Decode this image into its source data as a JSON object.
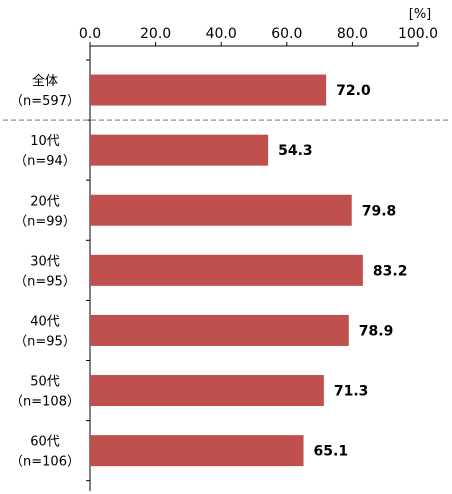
{
  "chart_data": {
    "type": "bar",
    "orientation": "horizontal",
    "unit": "[%]",
    "xlim": [
      0,
      100
    ],
    "ticks": [
      "0.0",
      "20.0",
      "40.0",
      "60.0",
      "80.0",
      "100.0"
    ],
    "grid": false,
    "categories": [
      {
        "line1": "全体",
        "line2": "（n=597）"
      },
      {
        "line1": "10代",
        "line2": "（n=94）"
      },
      {
        "line1": "20代",
        "line2": "（n=99）"
      },
      {
        "line1": "30代",
        "line2": "（n=95）"
      },
      {
        "line1": "40代",
        "line2": "（n=95）"
      },
      {
        "line1": "50代",
        "line2": "（n=108）"
      },
      {
        "line1": "60代",
        "line2": "（n=106）"
      }
    ],
    "values": [
      72.0,
      54.3,
      79.8,
      83.2,
      78.9,
      71.3,
      65.1
    ],
    "value_labels": [
      "72.0",
      "54.3",
      "79.8",
      "83.2",
      "78.9",
      "71.3",
      "65.1"
    ],
    "separator_after_first": true,
    "colors": {
      "bar": "#c0504d",
      "axis": "#000000",
      "separator": "#a6a6a6"
    }
  }
}
